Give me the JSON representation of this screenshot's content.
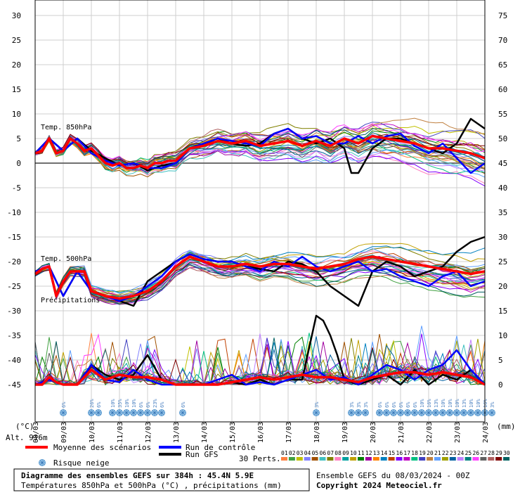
{
  "chart_data": {
    "type": "line",
    "title": "Diagramme des ensembles GEFS sur 384h : 45.4N 5.9E",
    "subtitle": "Températures 850hPa et 500hPa (°C) , précipitations (mm)",
    "run_info": "Ensemble GEFS du 08/03/2024 - 00Z",
    "copyright": "Copyright 2024 Meteociel.fr",
    "altitude": "Alt. 916m",
    "left_axis": {
      "unit_label": "(°C)",
      "ticks": [
        30,
        25,
        20,
        15,
        10,
        5,
        0,
        -5,
        -10,
        -15,
        -20,
        -25,
        -30,
        -35,
        -40,
        -45
      ],
      "ylim": [
        -45,
        30
      ]
    },
    "right_axis": {
      "unit_label": "(mm)",
      "ticks": [
        75,
        70,
        65,
        60,
        55,
        50,
        45,
        40,
        35,
        30,
        25,
        20,
        15,
        10,
        5,
        0
      ],
      "ylim": [
        0,
        75
      ]
    },
    "x_dates": [
      "08/03",
      "09/03",
      "10/03",
      "11/03",
      "12/03",
      "13/03",
      "14/03",
      "15/03",
      "16/03",
      "17/03",
      "18/03",
      "19/03",
      "20/03",
      "21/03",
      "22/03",
      "23/03",
      "24/03"
    ],
    "panel_labels": {
      "t850": "Temp. 850hPa",
      "t500": "Temp. 500hPa",
      "precip": "Précipitations"
    },
    "snow_risk": [
      {
        "label": "6%",
        "day": 1.0
      },
      {
        "label": "26%",
        "day": 2.0
      },
      {
        "label": "6%",
        "day": 2.25
      },
      {
        "label": "10%",
        "day": 2.75
      },
      {
        "label": "35%",
        "day": 3.0
      },
      {
        "label": "10%",
        "day": 3.25
      },
      {
        "label": "10%",
        "day": 3.5
      },
      {
        "label": "6%",
        "day": 3.75
      },
      {
        "label": "6%",
        "day": 4.0
      },
      {
        "label": "23%",
        "day": 4.25
      },
      {
        "label": "6%",
        "day": 4.5
      },
      {
        "label": "6%",
        "day": 5.25
      },
      {
        "label": "3%",
        "day": 10.0
      },
      {
        "label": "3%",
        "day": 11.25
      },
      {
        "label": "3%",
        "day": 11.5
      },
      {
        "label": "3%",
        "day": 11.75
      },
      {
        "label": "6%",
        "day": 12.25
      },
      {
        "label": "6%",
        "day": 12.5
      },
      {
        "label": "6%",
        "day": 12.75
      },
      {
        "label": "6%",
        "day": 13.0
      },
      {
        "label": "6%",
        "day": 13.25
      },
      {
        "label": "6%",
        "day": 13.5
      },
      {
        "label": "10%",
        "day": 13.75
      },
      {
        "label": "16%",
        "day": 14.0
      },
      {
        "label": "13%",
        "day": 14.25
      },
      {
        "label": "10%",
        "day": 14.5
      },
      {
        "label": "10%",
        "day": 14.75
      },
      {
        "label": "10%",
        "day": 15.0
      },
      {
        "label": "13%",
        "day": 15.25
      },
      {
        "label": "10%",
        "day": 15.5
      },
      {
        "label": "10%",
        "day": 15.75
      },
      {
        "label": "16%",
        "day": 16.0
      },
      {
        "label": "3%",
        "day": 16.25
      }
    ],
    "legend": {
      "mean": "Moyenne des scénarios",
      "control": "Run de contrôle",
      "gfs": "Run GFS",
      "snow": "Risque neige",
      "perts": "30 Perts."
    },
    "perturbation_labels": [
      "01",
      "02",
      "03",
      "04",
      "05",
      "06",
      "07",
      "08",
      "09",
      "10",
      "11",
      "12",
      "13",
      "14",
      "15",
      "16",
      "17",
      "18",
      "19",
      "20",
      "21",
      "22",
      "23",
      "24",
      "25",
      "26",
      "27",
      "28",
      "29",
      "30"
    ],
    "perturbation_colors": [
      "#ff8040",
      "#40a040",
      "#c0c000",
      "#8080ff",
      "#a05000",
      "#40c0c0",
      "#808000",
      "#ff80c0",
      "#00a0a0",
      "#c0a000",
      "#008000",
      "#a000a0",
      "#ff8000",
      "#0080c0",
      "#c04000",
      "#8000ff",
      "#c000c0",
      "#00c080",
      "#4040c0",
      "#c08040",
      "#60a0ff",
      "#a0a000",
      "#0060a0",
      "#c080ff",
      "#008080",
      "#ff40ff",
      "#606060",
      "#b06060",
      "#800000",
      "#006060"
    ],
    "series": [
      {
        "name": "Moyenne des scénarios (T850)",
        "x": [
          0,
          0.25,
          0.5,
          0.75,
          1.0,
          1.25,
          1.5,
          1.75,
          2.0,
          2.25,
          2.5,
          2.75,
          3.0,
          3.25,
          3.5,
          3.75,
          4.0,
          4.25,
          4.5,
          4.75,
          5.0,
          5.5,
          6.0,
          6.5,
          7.0,
          7.5,
          8.0,
          8.5,
          9.0,
          9.5,
          10.0,
          10.5,
          11.0,
          11.5,
          12.0,
          12.5,
          13.0,
          13.5,
          14.0,
          14.5,
          15.0,
          15.5,
          16.0
        ],
        "values": [
          2,
          2.5,
          5,
          2,
          2.5,
          5,
          4,
          2.5,
          3,
          1.5,
          0,
          -0.5,
          0,
          -1,
          -1,
          -0.5,
          -1,
          0,
          0,
          0.5,
          0.5,
          3,
          3.5,
          4.5,
          4,
          4.5,
          3.5,
          4,
          4.5,
          3.5,
          4.5,
          3.5,
          5,
          4,
          5.5,
          5,
          4.5,
          4,
          3,
          3,
          2.5,
          2,
          1
        ]
      },
      {
        "name": "Moyenne des scénarios (T500)",
        "x": [
          0,
          0.25,
          0.5,
          0.75,
          1.0,
          1.25,
          1.5,
          1.75,
          2.0,
          2.5,
          3.0,
          3.5,
          4.0,
          4.5,
          5.0,
          5.5,
          6.0,
          6.5,
          7.0,
          7.5,
          8.0,
          8.5,
          9.0,
          9.5,
          10.0,
          10.5,
          11.0,
          11.5,
          12.0,
          12.5,
          13.0,
          13.5,
          14.0,
          14.5,
          15.0,
          15.5,
          16.0
        ],
        "values": [
          -22.5,
          -21.5,
          -21,
          -27,
          -24,
          -22,
          -22,
          -22,
          -26,
          -27,
          -27.5,
          -27,
          -26,
          -24,
          -21,
          -19,
          -20,
          -21,
          -21,
          -20.5,
          -21,
          -20.5,
          -20.5,
          -21,
          -21.5,
          -21,
          -20.5,
          -19.5,
          -19,
          -19.5,
          -20,
          -20.5,
          -21,
          -21.5,
          -22,
          -22.5,
          -22
        ]
      },
      {
        "name": "Moyenne des scénarios (Précipitations)",
        "x": [
          0,
          0.25,
          0.5,
          0.75,
          1.0,
          1.5,
          2.0,
          2.5,
          3.0,
          3.5,
          4.0,
          4.5,
          5.0,
          5.5,
          6.0,
          6.5,
          7.0,
          7.5,
          8.0,
          8.5,
          9.0,
          9.5,
          10.0,
          10.5,
          11.0,
          11.5,
          12.0,
          12.5,
          13.0,
          13.5,
          14.0,
          14.5,
          15.0,
          15.5,
          16.0
        ],
        "values": [
          0,
          0,
          1.5,
          0.5,
          0,
          0,
          3,
          1,
          2,
          1.5,
          1.5,
          1,
          0,
          0,
          0,
          0,
          0.5,
          1,
          1.5,
          1,
          1.5,
          2,
          1.5,
          1.5,
          1,
          0.5,
          1.5,
          2,
          2.5,
          2.5,
          2,
          2.5,
          2,
          1.5,
          0
        ]
      },
      {
        "name": "Run de contrôle (T850)",
        "x": [
          0,
          0.5,
          1.0,
          1.5,
          2.0,
          2.5,
          3.0,
          3.5,
          4.0,
          4.5,
          5.0,
          5.5,
          6.0,
          6.5,
          7.0,
          7.5,
          8.0,
          8.5,
          9.0,
          9.5,
          10.0,
          10.5,
          11.0,
          11.5,
          12.0,
          12.5,
          13.0,
          13.5,
          14.0,
          14.5,
          15.0,
          15.5,
          16.0
        ],
        "values": [
          2,
          5,
          2.5,
          5,
          2,
          0.5,
          -0.5,
          0,
          -1,
          -1,
          0,
          3,
          4,
          5,
          4.5,
          4,
          3.5,
          6,
          7,
          5,
          5.5,
          4,
          4,
          5.5,
          4,
          5.5,
          6,
          3.5,
          2,
          4,
          1,
          -2,
          0
        ]
      },
      {
        "name": "Run de contrôle (T500)",
        "x": [
          0,
          0.5,
          1.0,
          1.5,
          2.0,
          2.5,
          3.0,
          3.5,
          4.0,
          4.5,
          5.0,
          5.5,
          6.0,
          6.5,
          7.0,
          7.5,
          8.0,
          8.5,
          9.0,
          9.5,
          10.0,
          10.5,
          11.0,
          11.5,
          12.0,
          12.5,
          13.0,
          13.5,
          14.0,
          14.5,
          15.0,
          15.5,
          16.0
        ],
        "values": [
          -22,
          -21,
          -27,
          -22,
          -26,
          -27,
          -28,
          -27,
          -25,
          -23,
          -20,
          -18.5,
          -19.5,
          -20,
          -20,
          -21,
          -22,
          -20,
          -21,
          -19,
          -21,
          -22,
          -21,
          -20,
          -22,
          -21.5,
          -23,
          -24,
          -25,
          -23,
          -22,
          -25,
          -24
        ]
      },
      {
        "name": "Run de contrôle (Précipitations)",
        "x": [
          0,
          0.5,
          1.0,
          1.5,
          2.0,
          2.5,
          3.0,
          3.5,
          4.0,
          4.5,
          5.0,
          5.5,
          6.0,
          6.5,
          7.0,
          7.5,
          8.0,
          8.5,
          9.0,
          9.5,
          10.0,
          10.5,
          11.0,
          11.5,
          12.0,
          12.5,
          13.0,
          13.5,
          14.0,
          14.5,
          15.0,
          15.5,
          16.0
        ],
        "values": [
          0,
          1,
          0,
          0,
          4,
          1,
          0.5,
          3,
          1,
          0,
          0,
          0,
          0,
          1,
          2,
          0,
          0.5,
          0,
          1,
          2,
          3,
          1,
          1.5,
          0,
          2,
          4,
          3,
          1,
          3,
          4,
          7,
          3,
          0
        ]
      },
      {
        "name": "Run GFS (T850)",
        "x": [
          0,
          0.5,
          1.0,
          1.5,
          2.0,
          2.5,
          3.0,
          3.5,
          4.0,
          4.5,
          5.0,
          5.5,
          6.0,
          6.5,
          7.0,
          7.5,
          8.0,
          8.5,
          9.0,
          9.5,
          10.0,
          10.5,
          11.0,
          11.25,
          11.5,
          12.0,
          12.5,
          13.0,
          13.5,
          14.0,
          14.5,
          15.0,
          15.5,
          16.0
        ],
        "values": [
          2,
          5,
          2.5,
          5,
          2.5,
          1,
          -0.5,
          0,
          -1.5,
          -0.5,
          0,
          3,
          4,
          5,
          4,
          3.5,
          4,
          6,
          7,
          5,
          4,
          5,
          3,
          -2,
          -2,
          3,
          5,
          5,
          4,
          3,
          2,
          4,
          9,
          7
        ]
      },
      {
        "name": "Run GFS (T500)",
        "x": [
          0,
          0.5,
          1.0,
          1.5,
          2.0,
          2.5,
          3.0,
          3.5,
          4.0,
          4.5,
          5.0,
          5.5,
          6.0,
          6.5,
          7.0,
          7.5,
          8.0,
          8.5,
          9.0,
          9.5,
          10.0,
          10.5,
          11.0,
          11.5,
          12.0,
          12.5,
          13.0,
          13.5,
          14.0,
          14.5,
          15.0,
          15.5,
          16.0
        ],
        "values": [
          -22,
          -21,
          -27,
          -22,
          -26,
          -27,
          -28,
          -29,
          -24,
          -22,
          -20,
          -18.5,
          -19.5,
          -20,
          -20,
          -21,
          -21.5,
          -22,
          -20,
          -20.5,
          -22,
          -25,
          -27,
          -29,
          -22,
          -20,
          -21,
          -23,
          -22,
          -21,
          -18,
          -16,
          -15
        ]
      },
      {
        "name": "Run GFS (Précipitations)",
        "x": [
          0,
          0.5,
          1.0,
          1.5,
          2.0,
          2.5,
          3.0,
          3.5,
          4.0,
          4.5,
          5.0,
          5.5,
          6.0,
          6.5,
          7.0,
          7.5,
          8.0,
          8.5,
          9.0,
          9.5,
          10.0,
          10.25,
          10.5,
          10.75,
          11.0,
          11.5,
          12.0,
          12.5,
          13.0,
          13.5,
          14.0,
          14.5,
          15.0,
          15.5,
          16.0
        ],
        "values": [
          0,
          1,
          0,
          0,
          4,
          2,
          1,
          2,
          6,
          1,
          0,
          0,
          0,
          0,
          0.5,
          0,
          1,
          0,
          1,
          1,
          14,
          13,
          10,
          6,
          1,
          0,
          1,
          2,
          0,
          3,
          0,
          2,
          1,
          3,
          0
        ]
      }
    ]
  }
}
